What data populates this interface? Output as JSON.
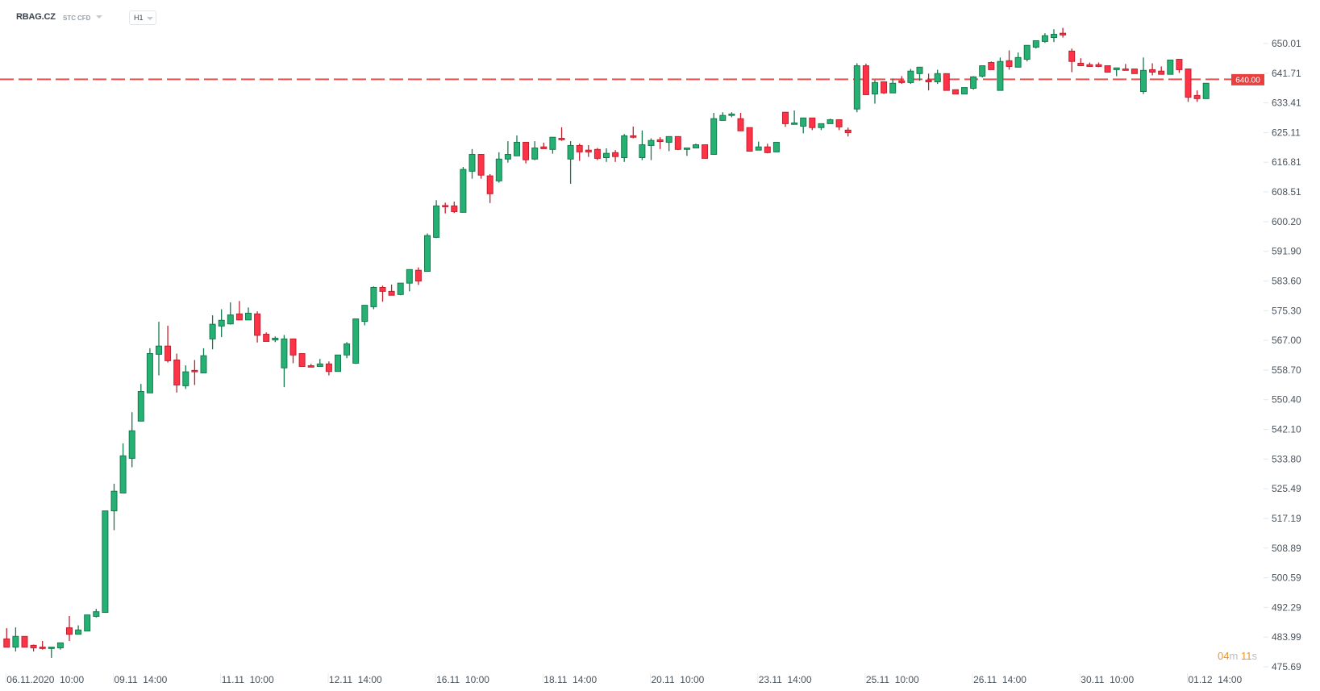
{
  "header": {
    "symbol": "RBAG.CZ",
    "tags": [
      "STC",
      "CFD"
    ],
    "timeframe": "H1"
  },
  "timer": {
    "minutes": "04",
    "minutes_unit": "m",
    "seconds": "11",
    "seconds_unit": "s"
  },
  "colors": {
    "up": "#26b174",
    "up_border": "#167a4d",
    "down": "#ff3347",
    "down_border": "#c2202f",
    "price_line": "#e8403f"
  },
  "chart_data": {
    "type": "candlestick",
    "current_price": {
      "value": 640.0,
      "label": "640.00"
    },
    "y_ticks": [
      "650.01",
      "641.71",
      "633.41",
      "625.11",
      "616.81",
      "608.51",
      "600.20",
      "591.90",
      "583.60",
      "575.30",
      "567.00",
      "558.70",
      "550.40",
      "542.10",
      "533.80",
      "525.49",
      "517.19",
      "508.89",
      "500.59",
      "492.29",
      "483.99",
      "475.69"
    ],
    "x_ticks": [
      {
        "label": "06.11.2020  10:00",
        "index": 0
      },
      {
        "label": "09.11  14:00",
        "index": 12
      },
      {
        "label": "11.11  10:00",
        "index": 24
      },
      {
        "label": "12.11  14:00",
        "index": 36
      },
      {
        "label": "16.11  10:00",
        "index": 48
      },
      {
        "label": "18.11  14:00",
        "index": 60
      },
      {
        "label": "20.11  10:00",
        "index": 72
      },
      {
        "label": "23.11  14:00",
        "index": 84
      },
      {
        "label": "25.11  10:00",
        "index": 96
      },
      {
        "label": "26.11  14:00",
        "index": 108
      },
      {
        "label": "30.11  10:00",
        "index": 120
      },
      {
        "label": "01.12  14:00",
        "index": 132
      }
    ],
    "ohlc_columns": [
      "open",
      "high",
      "low",
      "close"
    ],
    "candles": [
      [
        483.5,
        486.5,
        481.2,
        481.2
      ],
      [
        481.2,
        486.7,
        480.0,
        484.2
      ],
      [
        484.2,
        484.2,
        481.2,
        481.2
      ],
      [
        481.7,
        481.9,
        480.0,
        481.0
      ],
      [
        481.2,
        482.9,
        480.5,
        480.8
      ],
      [
        480.8,
        481.2,
        478.2,
        481.2
      ],
      [
        481.0,
        482.4,
        480.5,
        482.4
      ],
      [
        486.6,
        489.9,
        482.9,
        484.8
      ],
      [
        484.8,
        487.3,
        484.8,
        486.0
      ],
      [
        485.7,
        490.2,
        485.7,
        490.2
      ],
      [
        489.8,
        491.9,
        489.5,
        491.1
      ],
      [
        490.9,
        519.3,
        490.9,
        519.3
      ],
      [
        519.3,
        526.9,
        513.9,
        524.8
      ],
      [
        524.3,
        538.2,
        524.3,
        534.7
      ],
      [
        534.0,
        546.9,
        531.5,
        541.7
      ],
      [
        544.4,
        554.8,
        544.4,
        552.7
      ],
      [
        552.3,
        564.8,
        552.3,
        563.3
      ],
      [
        563.1,
        572.2,
        557.2,
        565.4
      ],
      [
        565.4,
        571.1,
        560.8,
        561.3
      ],
      [
        561.5,
        563.3,
        552.4,
        554.5
      ],
      [
        554.3,
        560.0,
        553.4,
        558.2
      ],
      [
        558.6,
        561.5,
        554.5,
        558.2
      ],
      [
        557.9,
        564.8,
        557.9,
        562.7
      ],
      [
        567.4,
        574.0,
        564.5,
        571.5
      ],
      [
        571.0,
        575.7,
        567.9,
        572.6
      ],
      [
        571.6,
        577.6,
        571.4,
        574.1
      ],
      [
        574.4,
        578.0,
        572.7,
        572.7
      ],
      [
        572.7,
        576.2,
        572.7,
        574.6
      ],
      [
        574.4,
        575.1,
        566.4,
        568.4
      ],
      [
        568.7,
        569.2,
        566.7,
        566.7
      ],
      [
        567.1,
        568.1,
        566.5,
        567.6
      ],
      [
        559.3,
        568.5,
        553.9,
        567.4
      ],
      [
        567.4,
        567.4,
        560.6,
        562.9
      ],
      [
        563.3,
        563.3,
        559.7,
        559.7
      ],
      [
        559.9,
        560.4,
        559.5,
        559.5
      ],
      [
        559.7,
        561.8,
        559.7,
        560.4
      ],
      [
        560.4,
        561.1,
        557.2,
        558.3
      ],
      [
        558.3,
        562.9,
        558.3,
        562.9
      ],
      [
        562.9,
        566.5,
        562.0,
        566.0
      ],
      [
        560.6,
        573.0,
        560.4,
        573.0
      ],
      [
        572.3,
        576.8,
        571.2,
        576.8
      ],
      [
        576.4,
        582.1,
        575.7,
        581.8
      ],
      [
        581.8,
        582.3,
        577.8,
        580.7
      ],
      [
        580.7,
        582.6,
        579.6,
        579.6
      ],
      [
        579.8,
        583.0,
        579.6,
        583.0
      ],
      [
        583.0,
        586.8,
        580.7,
        586.8
      ],
      [
        586.6,
        587.4,
        582.5,
        583.6
      ],
      [
        586.3,
        596.9,
        586.3,
        596.3
      ],
      [
        595.8,
        606.2,
        595.6,
        604.6
      ],
      [
        604.7,
        605.5,
        602.5,
        604.4
      ],
      [
        604.6,
        605.8,
        602.6,
        603.0
      ],
      [
        602.8,
        615.5,
        602.8,
        614.8
      ],
      [
        614.3,
        620.5,
        612.2,
        619.0
      ],
      [
        619.0,
        619.0,
        612.2,
        613.2
      ],
      [
        613.0,
        613.5,
        605.4,
        608.0
      ],
      [
        611.6,
        619.6,
        611.1,
        617.7
      ],
      [
        617.7,
        622.7,
        616.7,
        619.0
      ],
      [
        618.6,
        624.3,
        618.6,
        622.4
      ],
      [
        622.4,
        622.4,
        616.5,
        617.5
      ],
      [
        617.7,
        622.7,
        617.4,
        620.8
      ],
      [
        621.1,
        622.3,
        620.6,
        620.6
      ],
      [
        620.4,
        623.8,
        619.2,
        623.8
      ],
      [
        623.5,
        626.6,
        622.8,
        623.1
      ],
      [
        617.7,
        622.7,
        610.8,
        621.5
      ],
      [
        621.5,
        622.0,
        617.2,
        619.7
      ],
      [
        620.2,
        621.6,
        618.3,
        619.7
      ],
      [
        620.4,
        620.8,
        617.4,
        617.9
      ],
      [
        618.1,
        620.7,
        616.9,
        619.3
      ],
      [
        619.5,
        620.2,
        616.9,
        618.4
      ],
      [
        618.1,
        624.7,
        616.9,
        624.2
      ],
      [
        624.2,
        626.8,
        623.5,
        623.8
      ],
      [
        618.1,
        625.7,
        617.4,
        621.7
      ],
      [
        621.5,
        623.5,
        617.4,
        622.9
      ],
      [
        623.1,
        623.8,
        620.5,
        622.6
      ],
      [
        622.4,
        624.0,
        619.9,
        624.0
      ],
      [
        624.0,
        624.0,
        620.2,
        620.4
      ],
      [
        620.4,
        620.8,
        618.6,
        620.8
      ],
      [
        620.8,
        622.0,
        620.8,
        621.7
      ],
      [
        621.7,
        621.7,
        617.9,
        617.9
      ],
      [
        619.0,
        630.6,
        619.0,
        629.0
      ],
      [
        628.5,
        630.8,
        628.5,
        629.9
      ],
      [
        629.9,
        630.8,
        629.4,
        630.3
      ],
      [
        629.0,
        630.6,
        625.6,
        625.6
      ],
      [
        626.5,
        626.5,
        619.9,
        619.9
      ],
      [
        620.2,
        622.6,
        620.2,
        621.1
      ],
      [
        621.1,
        622.0,
        619.3,
        619.5
      ],
      [
        619.7,
        622.4,
        619.7,
        622.4
      ],
      [
        630.8,
        630.8,
        626.7,
        627.6
      ],
      [
        627.4,
        631.3,
        627.4,
        627.8
      ],
      [
        626.9,
        629.2,
        624.9,
        629.2
      ],
      [
        629.2,
        629.2,
        625.8,
        626.5
      ],
      [
        626.5,
        627.6,
        625.8,
        627.6
      ],
      [
        627.6,
        629.0,
        627.6,
        628.7
      ],
      [
        628.7,
        628.7,
        625.8,
        626.7
      ],
      [
        625.8,
        626.5,
        624.0,
        625.1
      ],
      [
        631.7,
        644.5,
        630.8,
        643.8
      ],
      [
        643.8,
        644.4,
        635.7,
        635.7
      ],
      [
        635.9,
        639.8,
        633.2,
        639.1
      ],
      [
        639.3,
        639.3,
        635.9,
        636.2
      ],
      [
        636.2,
        640.2,
        636.2,
        638.9
      ],
      [
        639.6,
        640.9,
        638.7,
        639.1
      ],
      [
        639.1,
        642.9,
        638.7,
        642.3
      ],
      [
        641.6,
        643.4,
        639.6,
        643.4
      ],
      [
        639.8,
        641.6,
        636.9,
        639.3
      ],
      [
        639.3,
        642.7,
        638.7,
        641.6
      ],
      [
        641.6,
        641.6,
        636.9,
        636.9
      ],
      [
        637.1,
        637.1,
        635.9,
        635.9
      ],
      [
        635.9,
        637.7,
        635.9,
        637.7
      ],
      [
        637.5,
        640.9,
        637.1,
        640.7
      ],
      [
        640.9,
        643.8,
        640.5,
        643.8
      ],
      [
        644.7,
        645.0,
        642.7,
        642.7
      ],
      [
        636.9,
        646.1,
        636.9,
        645.0
      ],
      [
        645.2,
        648.1,
        642.7,
        643.6
      ],
      [
        643.4,
        647.5,
        643.4,
        646.1
      ],
      [
        645.6,
        649.5,
        645.0,
        649.5
      ],
      [
        649.0,
        650.8,
        648.6,
        650.8
      ],
      [
        650.6,
        652.9,
        650.2,
        652.2
      ],
      [
        651.7,
        654.0,
        650.4,
        652.6
      ],
      [
        652.9,
        654.4,
        651.7,
        652.4
      ],
      [
        647.9,
        648.6,
        642.0,
        645.0
      ],
      [
        644.5,
        645.9,
        643.8,
        643.8
      ],
      [
        644.1,
        644.7,
        643.6,
        643.6
      ],
      [
        644.1,
        644.7,
        643.4,
        643.6
      ],
      [
        643.8,
        643.8,
        642.0,
        642.0
      ],
      [
        642.7,
        643.2,
        640.9,
        643.2
      ],
      [
        642.9,
        644.3,
        642.5,
        642.5
      ],
      [
        642.9,
        642.9,
        641.6,
        641.6
      ],
      [
        636.6,
        646.1,
        635.9,
        642.5
      ],
      [
        642.7,
        644.5,
        641.1,
        642.0
      ],
      [
        642.3,
        643.6,
        641.4,
        641.4
      ],
      [
        641.4,
        645.4,
        641.4,
        645.4
      ],
      [
        645.6,
        645.6,
        641.8,
        642.7
      ],
      [
        642.9,
        642.9,
        633.7,
        635.0
      ],
      [
        635.5,
        636.9,
        633.7,
        634.6
      ],
      [
        634.6,
        638.9,
        634.6,
        638.9
      ]
    ]
  }
}
